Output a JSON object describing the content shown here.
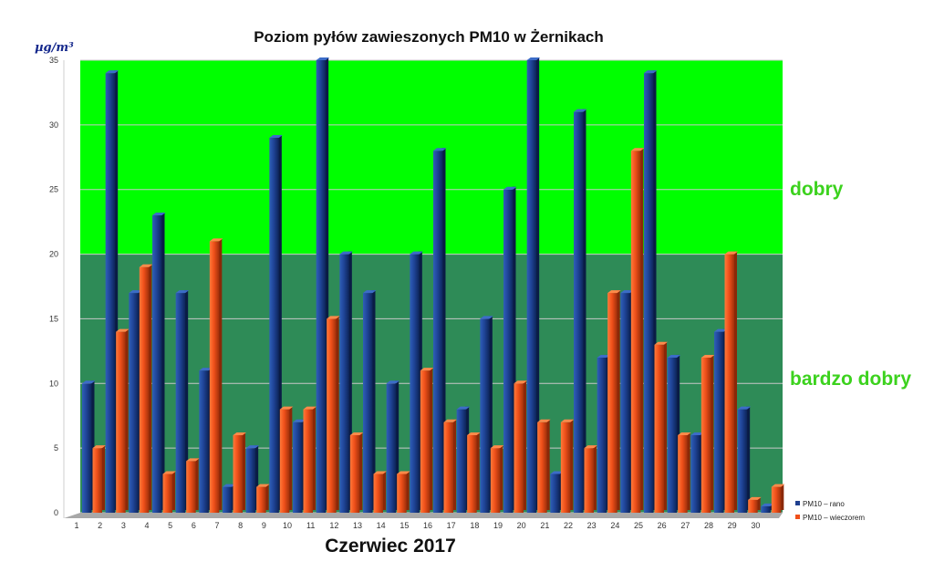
{
  "chart_data": {
    "type": "bar",
    "title": "Poziom pyłów zawieszonych PM10 w Żernikach",
    "unit_label": "µg/m³",
    "xlabel": "Czerwiec 2017",
    "ylim": [
      0,
      35
    ],
    "yticks": [
      0,
      5,
      10,
      15,
      20,
      25,
      30,
      35
    ],
    "categories": [
      "1",
      "2",
      "3",
      "4",
      "5",
      "6",
      "7",
      "8",
      "9",
      "10",
      "11",
      "12",
      "13",
      "14",
      "15",
      "16",
      "17",
      "18",
      "19",
      "20",
      "21",
      "22",
      "23",
      "24",
      "25",
      "26",
      "27",
      "28",
      "29",
      "30"
    ],
    "series": [
      {
        "name": "PM10 – rano",
        "color": "#1f3f8f",
        "values": [
          10,
          34,
          17,
          23,
          17,
          11,
          2,
          5,
          29,
          7,
          35,
          20,
          17,
          10,
          20,
          28,
          8,
          15,
          25,
          35,
          3,
          31,
          12,
          17,
          34,
          12,
          6,
          14,
          8,
          0.5
        ]
      },
      {
        "name": "PM10 – wieczorem",
        "color": "#f0501a",
        "values": [
          5,
          14,
          19,
          3,
          4,
          21,
          6,
          2,
          8,
          8,
          15,
          6,
          3,
          3,
          11,
          7,
          6,
          5,
          10,
          7,
          7,
          5,
          17,
          28,
          13,
          6,
          12,
          20,
          1,
          2
        ]
      }
    ],
    "zones": [
      {
        "label": "dobry",
        "from": 20,
        "to": 35,
        "color": "#00ff00"
      },
      {
        "label": "bardzo dobry",
        "from": 0,
        "to": 20,
        "color": "#2e8b57"
      }
    ],
    "grid": true,
    "legend_position": "bottom-right"
  }
}
